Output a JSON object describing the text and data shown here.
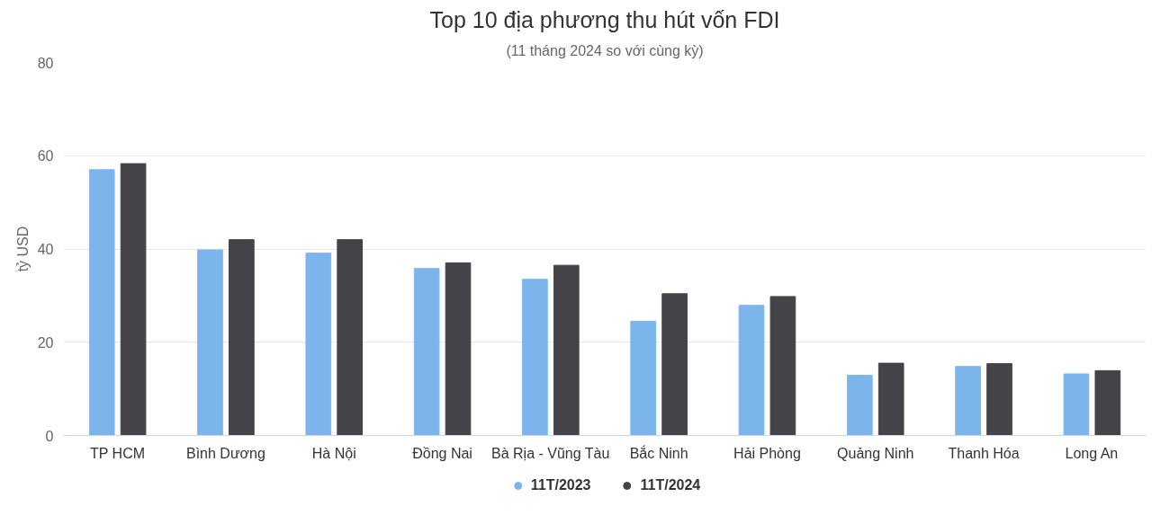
{
  "chart_data": {
    "type": "bar",
    "title": "Top 10 địa phương thu hút vốn FDI",
    "subtitle": "(11 tháng 2024 so với cùng kỳ)",
    "ylabel": "tỷ USD",
    "categories": [
      "TP HCM",
      "Bình Dương",
      "Hà Nội",
      "Đồng Nai",
      "Bà Rịa - Vũng Tàu",
      "Bắc Ninh",
      "Hải Phòng",
      "Quảng Ninh",
      "Thanh Hóa",
      "Long An"
    ],
    "series": [
      {
        "name": "11T/2023",
        "color": "#7cb5ec",
        "values": [
          57.0,
          39.8,
          39.1,
          35.8,
          33.5,
          24.5,
          27.9,
          12.9,
          14.8,
          13.2
        ]
      },
      {
        "name": "11T/2024",
        "color": "#434348",
        "values": [
          58.3,
          42.0,
          42.0,
          37.0,
          36.5,
          30.4,
          29.8,
          15.5,
          15.4,
          13.9
        ]
      }
    ],
    "ylim": [
      0,
      80
    ],
    "yticks": [
      0,
      20,
      40,
      60,
      80
    ],
    "grid": "y",
    "legend": "bottom"
  }
}
